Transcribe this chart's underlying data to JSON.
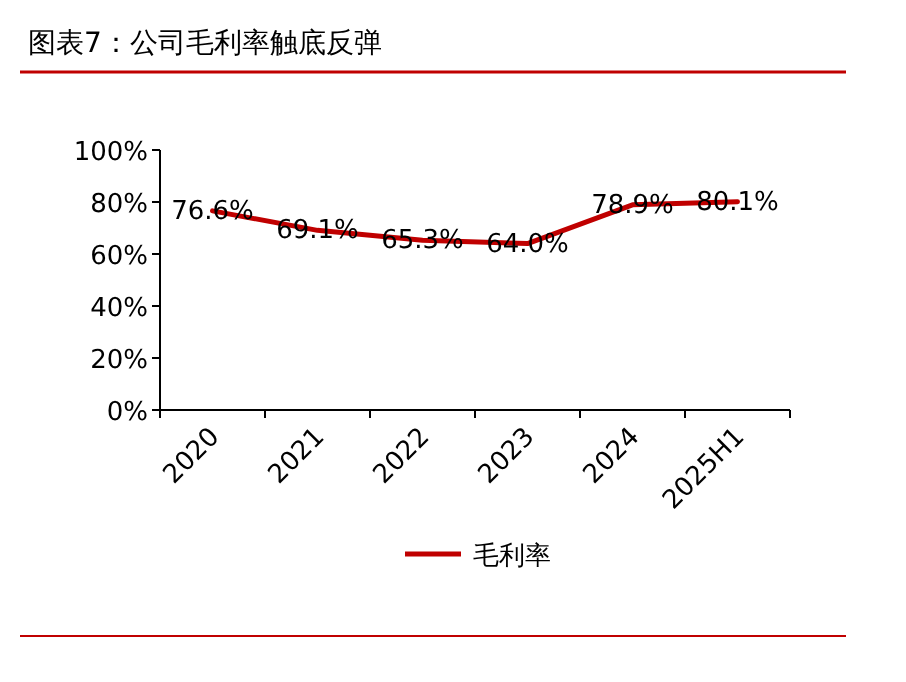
{
  "chart_data": {
    "type": "line",
    "title": "图表7：公司毛利率触底反弹",
    "categories": [
      "2020",
      "2021",
      "2022",
      "2023",
      "2024",
      "2025H1"
    ],
    "series": [
      {
        "name": "毛利率",
        "color": "#c00000",
        "values": [
          76.6,
          69.1,
          65.3,
          64.0,
          78.9,
          80.1
        ],
        "value_labels": [
          "76.6%",
          "69.1%",
          "65.3%",
          "64.0%",
          "78.9%",
          "80.1%"
        ]
      }
    ],
    "ylim": [
      0,
      100
    ],
    "yticks": [
      {
        "value": 0,
        "label": "0%"
      },
      {
        "value": 20,
        "label": "20%"
      },
      {
        "value": 40,
        "label": "40%"
      },
      {
        "value": 60,
        "label": "60%"
      },
      {
        "value": 80,
        "label": "80%"
      },
      {
        "value": 100,
        "label": "100%"
      }
    ],
    "grid": false,
    "legend": "bottom",
    "marker": "none",
    "line_style": "solid"
  }
}
